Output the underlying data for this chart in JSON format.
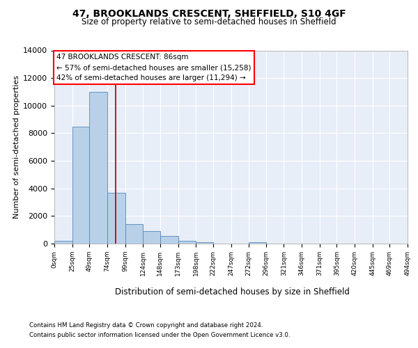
{
  "title1": "47, BROOKLANDS CRESCENT, SHEFFIELD, S10 4GF",
  "title2": "Size of property relative to semi-detached houses in Sheffield",
  "xlabel": "Distribution of semi-detached houses by size in Sheffield",
  "ylabel": "Number of semi-detached properties",
  "annotation_title": "47 BROOKLANDS CRESCENT: 86sqm",
  "annotation_line1": "← 57% of semi-detached houses are smaller (15,258)",
  "annotation_line2": "42% of semi-detached houses are larger (11,294) →",
  "footnote1": "Contains HM Land Registry data © Crown copyright and database right 2024.",
  "footnote2": "Contains public sector information licensed under the Open Government Licence v3.0.",
  "property_size": 86,
  "bin_edges": [
    0,
    25,
    49,
    74,
    99,
    124,
    148,
    173,
    198,
    222,
    247,
    272,
    296,
    321,
    346,
    371,
    395,
    420,
    445,
    469,
    494
  ],
  "bar_heights": [
    200,
    8500,
    11000,
    3700,
    1400,
    900,
    580,
    200,
    100,
    0,
    0,
    80,
    0,
    0,
    0,
    0,
    0,
    0,
    0,
    0
  ],
  "bar_color": "#b8d0e8",
  "bar_edge_color": "#5588bb",
  "line_color": "#cc0000",
  "background_color": "#e8eef8",
  "ylim": [
    0,
    14000
  ],
  "yticks": [
    0,
    2000,
    4000,
    6000,
    8000,
    10000,
    12000,
    14000
  ],
  "tick_labels": [
    "0sqm",
    "25sqm",
    "49sqm",
    "74sqm",
    "99sqm",
    "124sqm",
    "148sqm",
    "173sqm",
    "198sqm",
    "222sqm",
    "247sqm",
    "272sqm",
    "296sqm",
    "321sqm",
    "346sqm",
    "371sqm",
    "395sqm",
    "420sqm",
    "445sqm",
    "469sqm",
    "494sqm"
  ]
}
